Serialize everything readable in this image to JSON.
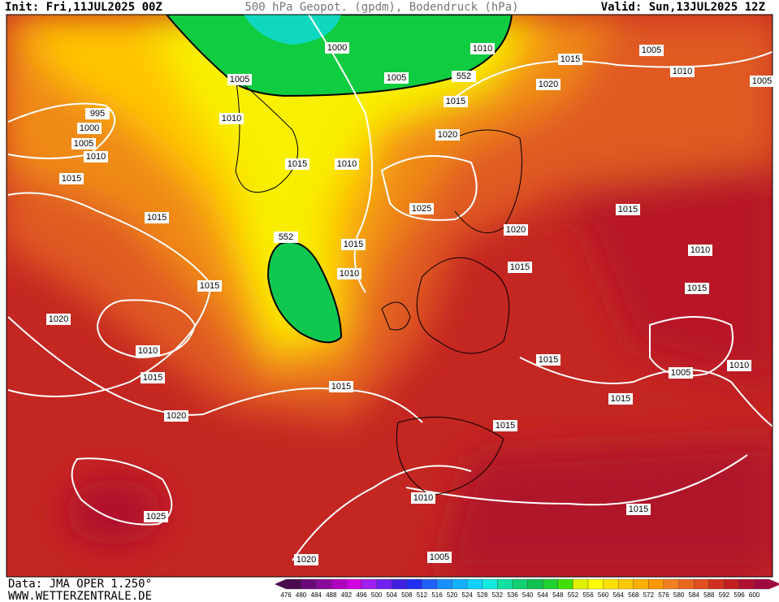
{
  "header": {
    "init": "Init: Fri,11JUL2025 00Z",
    "title": "500 hPa Geopot. (gpdm), Bodendruck (hPa)",
    "valid": "Valid: Sun,13JUL2025 12Z"
  },
  "isobar_labels": [
    "995",
    "1000",
    "1005",
    "1010",
    "1015",
    "1015",
    "1010",
    "1005",
    "1000",
    "1005",
    "552",
    "1010",
    "1015",
    "1015",
    "1020",
    "1005",
    "1010",
    "1005",
    "1020",
    "1015",
    "1010",
    "1025",
    "1020",
    "1015",
    "1015",
    "552",
    "1010",
    "1015",
    "1010",
    "1015",
    "1015",
    "1020",
    "1010",
    "1015",
    "1015",
    "1005",
    "1010",
    "1015",
    "1015",
    "1020",
    "1015",
    "1010",
    "1025",
    "1015",
    "1005",
    "1020"
  ],
  "footer": {
    "data": "Data: JMA OPER 1.250°",
    "site": "WWW.WETTERZENTRALE.DE"
  },
  "colorbar": {
    "levels": [
      476,
      480,
      484,
      488,
      492,
      496,
      500,
      504,
      508,
      512,
      516,
      520,
      524,
      528,
      532,
      536,
      540,
      544,
      548,
      552,
      556,
      560,
      564,
      568,
      572,
      576,
      580,
      584,
      588,
      592,
      596,
      600
    ],
    "colors": [
      "#4b0a4b",
      "#6a0a7a",
      "#8a0a9a",
      "#b000c0",
      "#d000e0",
      "#a020f0",
      "#7020f0",
      "#4020e0",
      "#2030f0",
      "#2060ff",
      "#1890ff",
      "#10b0ff",
      "#10d0ff",
      "#10e8e0",
      "#10e0a0",
      "#10d070",
      "#10c050",
      "#20d030",
      "#40e000",
      "#e0f000",
      "#ffff00",
      "#ffe000",
      "#ffc800",
      "#ffb000",
      "#ff9800",
      "#f08020",
      "#e86820",
      "#e05020",
      "#d03020",
      "#c02020",
      "#b01030",
      "#a00840"
    ]
  }
}
